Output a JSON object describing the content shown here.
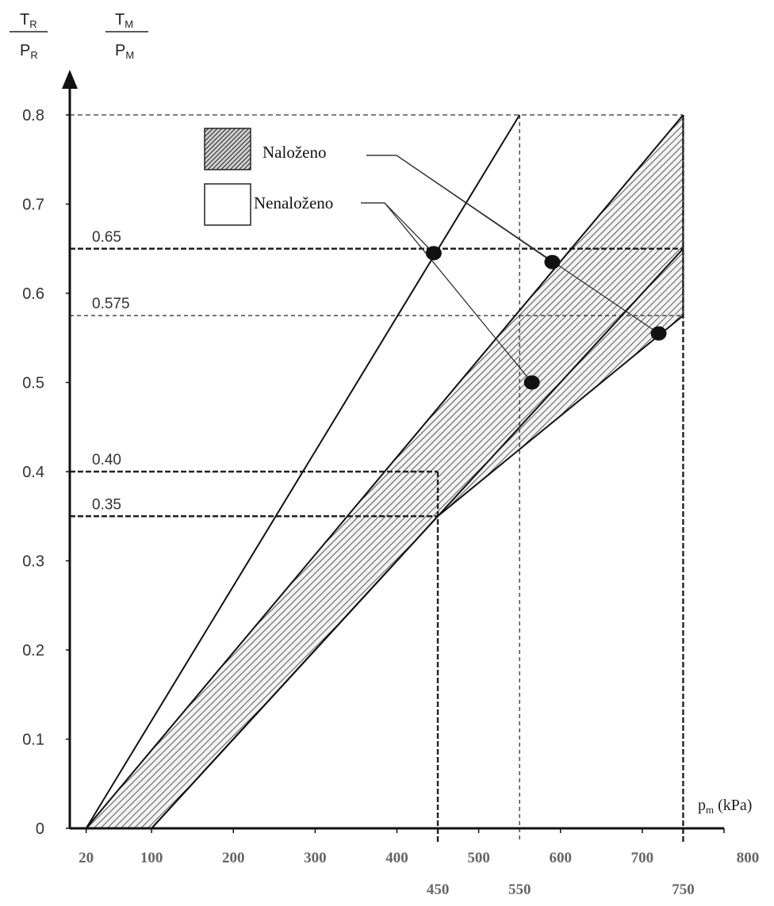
{
  "chart_data": {
    "type": "line",
    "y_axis_labels": [
      {
        "num": "T",
        "num_sub": "R",
        "den": "P",
        "den_sub": "R"
      },
      {
        "num": "T",
        "num_sub": "M",
        "den": "P",
        "den_sub": "M"
      }
    ],
    "x_axis_label": {
      "main": "p",
      "sub": "m",
      "unit": " (kPa)"
    },
    "xlim": [
      0,
      800
    ],
    "ylim": [
      0,
      0.8
    ],
    "y_ticks": [
      {
        "value": 0,
        "label": "0"
      },
      {
        "value": 0.1,
        "label": "0.1"
      },
      {
        "value": 0.2,
        "label": "0.2"
      },
      {
        "value": 0.3,
        "label": "0.3"
      },
      {
        "value": 0.4,
        "label": "0.4"
      },
      {
        "value": 0.5,
        "label": "0.5"
      },
      {
        "value": 0.6,
        "label": "0.6"
      },
      {
        "value": 0.7,
        "label": "0.7"
      },
      {
        "value": 0.8,
        "label": "0.8"
      }
    ],
    "x_ticks": [
      {
        "value": 20,
        "label": "20"
      },
      {
        "value": 100,
        "label": "100"
      },
      {
        "value": 200,
        "label": "200"
      },
      {
        "value": 300,
        "label": "300"
      },
      {
        "value": 400,
        "label": "400"
      },
      {
        "value": 500,
        "label": "500"
      },
      {
        "value": 600,
        "label": "600"
      },
      {
        "value": 700,
        "label": "700"
      },
      {
        "value": 800,
        "label": "800"
      }
    ],
    "x_markers": [
      {
        "value": 450,
        "label": "450"
      },
      {
        "value": 550,
        "label": "550"
      },
      {
        "value": 750,
        "label": "750"
      }
    ],
    "reference_levels": [
      {
        "value": 0.65,
        "label": "0.65",
        "x_end": 750
      },
      {
        "value": 0.575,
        "label": "0.575",
        "x_end": 750
      },
      {
        "value": 0.4,
        "label": "0.40",
        "x_end": 450
      },
      {
        "value": 0.35,
        "label": "0.35",
        "x_end": 450
      }
    ],
    "top_dashed_line": {
      "y": 0.8,
      "x_end": 750
    },
    "lines": [
      {
        "points": [
          [
            20,
            0
          ],
          [
            550,
            0.8
          ]
        ]
      },
      {
        "points": [
          [
            20,
            0
          ],
          [
            750,
            0.8
          ]
        ]
      },
      {
        "points": [
          [
            100,
            0
          ],
          [
            750,
            0.65
          ]
        ]
      },
      {
        "points": [
          [
            100,
            0
          ],
          [
            450,
            0.35
          ],
          [
            750,
            0.575
          ]
        ]
      }
    ],
    "bands": [
      {
        "style": "hatched",
        "polygon": [
          [
            20,
            0
          ],
          [
            100,
            0
          ],
          [
            100,
            0
          ],
          [
            750,
            0.65
          ],
          [
            750,
            0.8
          ]
        ]
      },
      {
        "style": "hatched",
        "polygon": [
          [
            100,
            0
          ],
          [
            450,
            0.35
          ],
          [
            750,
            0.575
          ],
          [
            750,
            0.65
          ]
        ]
      }
    ],
    "points": [
      {
        "x": 445,
        "y": 0.645,
        "callout": "Nenaloženo"
      },
      {
        "x": 565,
        "y": 0.5,
        "callout": "Nenaloženo"
      },
      {
        "x": 590,
        "y": 0.635,
        "callout": "Naloženo"
      },
      {
        "x": 720,
        "y": 0.555,
        "callout": "Naloženo"
      }
    ],
    "legend": [
      {
        "label": "Naloženo",
        "style": "hatched"
      },
      {
        "label": "Nenaloženo",
        "style": "empty"
      }
    ],
    "legend_position": "top-center",
    "grid": false
  }
}
